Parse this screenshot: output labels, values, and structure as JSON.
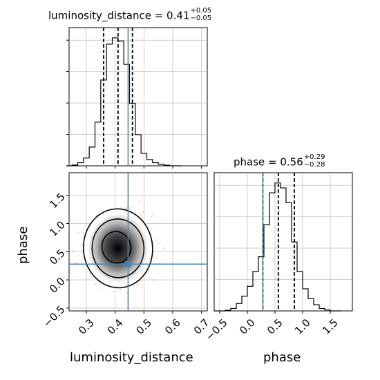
{
  "titles": {
    "luminosity_distance": {
      "prefix": "luminosity_distance = 0.41",
      "plus": "+0.05",
      "minus": "−0.05"
    },
    "phase": {
      "prefix": "phase = 0.56",
      "plus": "+0.29",
      "minus": "−0.28"
    }
  },
  "axis_labels": {
    "x_left": "luminosity_distance",
    "x_right": "phase",
    "y_left": "phase"
  },
  "colors": {
    "truth": "#4682b4",
    "hist": "#000000",
    "grid": "#b0b0b0",
    "density_dark": "#000000",
    "density_light": "#ffffff",
    "scatter": "#888888"
  },
  "chart_data": [
    {
      "type": "histogram",
      "panel": "luminosity_distance marginal",
      "x": [
        0.24,
        0.26,
        0.28,
        0.3,
        0.32,
        0.34,
        0.36,
        0.38,
        0.4,
        0.42,
        0.44,
        0.46,
        0.48,
        0.5,
        0.52,
        0.54,
        0.56,
        0.58,
        0.6,
        0.62
      ],
      "counts": [
        0,
        0.5,
        2,
        5,
        12,
        28,
        55,
        78,
        82,
        80,
        65,
        40,
        20,
        8,
        4,
        2,
        1,
        0.4,
        0,
        0
      ],
      "xlim": [
        0.24,
        0.72
      ],
      "xticks": [
        "0.3",
        "0.4",
        "0.5",
        "0.6",
        "0.7"
      ],
      "quantiles": [
        0.36,
        0.41,
        0.46
      ],
      "truth": 0.445,
      "grid": true
    },
    {
      "type": "histogram",
      "panel": "phase marginal",
      "x": [
        -0.55,
        -0.45,
        -0.35,
        -0.25,
        -0.15,
        -0.05,
        0.05,
        0.15,
        0.25,
        0.35,
        0.45,
        0.55,
        0.65,
        0.75,
        0.85,
        0.95,
        1.05,
        1.15,
        1.25,
        1.35,
        1.45,
        1.55,
        1.65
      ],
      "counts": [
        0,
        0,
        0.3,
        1,
        3,
        6,
        10,
        16,
        22,
        35,
        48,
        52,
        50,
        44,
        28,
        16,
        9,
        5,
        2.5,
        1,
        0.4,
        0,
        0
      ],
      "xlim": [
        -0.6,
        1.9
      ],
      "xticks": [
        "−0.5",
        "0.0",
        "0.5",
        "1.0",
        "1.5"
      ],
      "quantiles": [
        0.28,
        0.56,
        0.85
      ],
      "truth": 0.28,
      "grid": true
    },
    {
      "type": "2d_density",
      "panel": "phase vs luminosity_distance",
      "xlim": [
        0.24,
        0.72
      ],
      "ylim": [
        -0.55,
        1.9
      ],
      "xticks": [
        "0.3",
        "0.4",
        "0.5",
        "0.6",
        "0.7"
      ],
      "yticks": [
        "−0.5",
        "0.0",
        "0.5",
        "1.0",
        "1.5"
      ],
      "center": [
        0.41,
        0.56
      ],
      "contour_levels": [
        {
          "rx": 0.05,
          "ry": 0.28
        },
        {
          "rx": 0.09,
          "ry": 0.52
        },
        {
          "rx": 0.12,
          "ry": 0.7
        }
      ],
      "truth": [
        0.445,
        0.28
      ],
      "grid": true
    }
  ]
}
